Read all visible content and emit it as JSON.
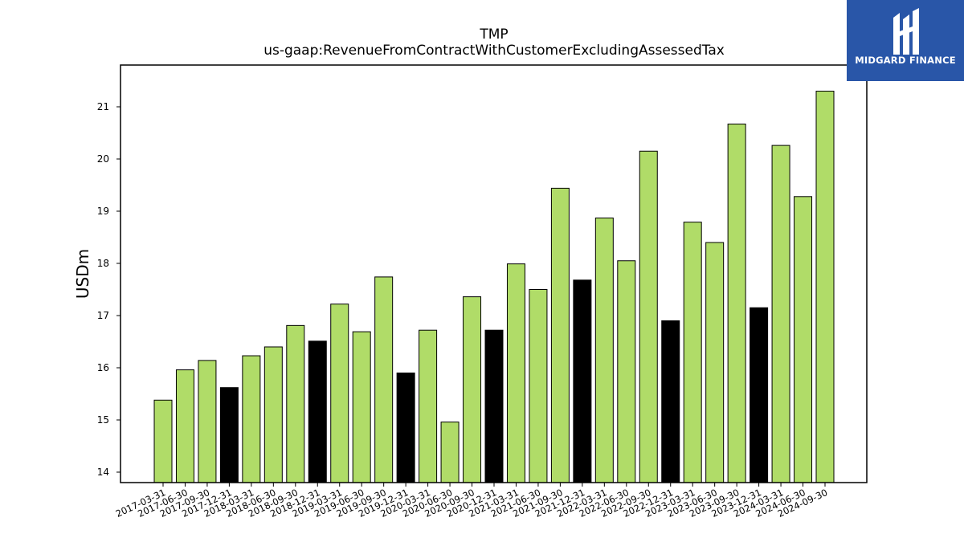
{
  "logo": {
    "text": "MIDGARD FINANCE"
  },
  "colors": {
    "quarter_bar": "#b0dc68",
    "year_end_bar": "#000000",
    "logo_bg": "#2956a8"
  },
  "chart_data": {
    "type": "bar",
    "title": "TMP",
    "subtitle": "us-gaap:RevenueFromContractWithCustomerExcludingAssessedTax",
    "xlabel": "",
    "ylabel": "USDm",
    "ylim": [
      13.8,
      21.8
    ],
    "yticks": [
      14,
      15,
      16,
      17,
      18,
      19,
      20,
      21
    ],
    "grid": false,
    "categories": [
      "2017-03-31",
      "2017-06-30",
      "2017-09-30",
      "2017-12-31",
      "2018-03-31",
      "2018-06-30",
      "2018-09-30",
      "2018-12-31",
      "2019-03-31",
      "2019-06-30",
      "2019-09-30",
      "2019-12-31",
      "2020-03-31",
      "2020-06-30",
      "2020-09-30",
      "2020-12-31",
      "2021-03-31",
      "2021-06-30",
      "2021-09-30",
      "2021-12-31",
      "2022-03-31",
      "2022-06-30",
      "2022-09-30",
      "2022-12-31",
      "2023-03-31",
      "2023-06-30",
      "2023-09-30",
      "2023-12-31",
      "2024-03-31",
      "2024-06-30",
      "2024-09-30"
    ],
    "values": [
      15.38,
      15.96,
      16.14,
      15.62,
      16.23,
      16.4,
      16.81,
      16.51,
      17.22,
      16.69,
      17.74,
      15.9,
      16.72,
      14.96,
      17.36,
      16.72,
      17.99,
      17.5,
      19.44,
      17.68,
      18.87,
      18.05,
      20.15,
      16.9,
      18.79,
      18.4,
      20.67,
      17.15,
      20.26,
      19.28,
      21.3
    ],
    "year_end": [
      false,
      false,
      false,
      true,
      false,
      false,
      false,
      true,
      false,
      false,
      false,
      true,
      false,
      false,
      false,
      true,
      false,
      false,
      false,
      true,
      false,
      false,
      false,
      true,
      false,
      false,
      false,
      true,
      false,
      false,
      false
    ]
  }
}
